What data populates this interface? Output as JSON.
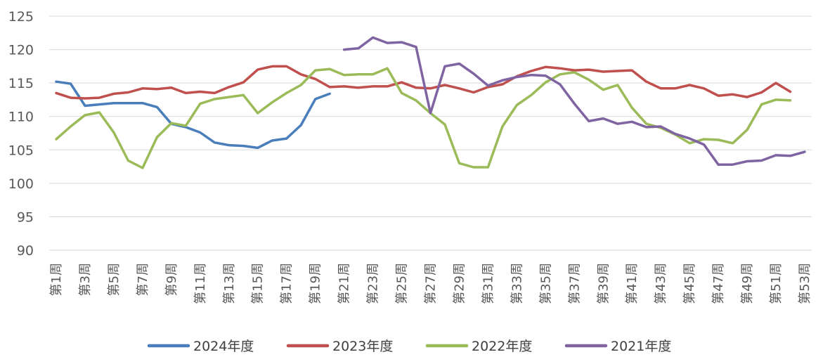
{
  "chart_data": {
    "type": "line",
    "title": "",
    "xlabel": "",
    "ylabel": "",
    "ylim": [
      90,
      125
    ],
    "yticks": [
      90,
      95,
      100,
      105,
      110,
      115,
      120,
      125
    ],
    "grid": true,
    "legend_position": "bottom",
    "categories": [
      "第1周",
      "第2周",
      "第3周",
      "第4周",
      "第5周",
      "第6周",
      "第7周",
      "第8周",
      "第9周",
      "第10周",
      "第11周",
      "第12周",
      "第13周",
      "第14周",
      "第15周",
      "第16周",
      "第17周",
      "第18周",
      "第19周",
      "第20周",
      "第21周",
      "第22周",
      "第23周",
      "第24周",
      "第25周",
      "第26周",
      "第27周",
      "第28周",
      "第29周",
      "第30周",
      "第31周",
      "第32周",
      "第33周",
      "第34周",
      "第35周",
      "第36周",
      "第37周",
      "第38周",
      "第39周",
      "第40周",
      "第41周",
      "第42周",
      "第43周",
      "第44周",
      "第45周",
      "第46周",
      "第47周",
      "第48周",
      "第49周",
      "第50周",
      "第51周",
      "第52周",
      "第53周"
    ],
    "x_tick_labels": [
      "第1周",
      "第3周",
      "第5周",
      "第7周",
      "第9周",
      "第11周",
      "第13周",
      "第15周",
      "第17周",
      "第19周",
      "第21周",
      "第23周",
      "第25周",
      "第27周",
      "第29周",
      "第31周",
      "第33周",
      "第35周",
      "第37周",
      "第39周",
      "第41周",
      "第43周",
      "第45周",
      "第47周",
      "第49周",
      "第51周",
      "第53周"
    ],
    "series": [
      {
        "name": "2024年度",
        "color": "#4a7ebb",
        "values": [
          115.2,
          114.9,
          111.6,
          111.8,
          112.0,
          112.0,
          112.0,
          111.4,
          108.9,
          108.4,
          107.6,
          106.1,
          105.7,
          105.6,
          105.3,
          106.4,
          106.7,
          108.7,
          112.6,
          113.4,
          null,
          null,
          null,
          null,
          null,
          null,
          null,
          null,
          null,
          null,
          null,
          null,
          null,
          null,
          null,
          null,
          null,
          null,
          null,
          null,
          null,
          null,
          null,
          null,
          null,
          null,
          null,
          null,
          null,
          null,
          null,
          null,
          null
        ]
      },
      {
        "name": "2023年度",
        "color": "#c0504d",
        "values": [
          113.5,
          112.8,
          112.7,
          112.8,
          113.4,
          113.6,
          114.2,
          114.1,
          114.3,
          113.5,
          113.7,
          113.5,
          114.4,
          115.1,
          117.0,
          117.5,
          117.5,
          116.3,
          115.6,
          114.4,
          114.5,
          114.3,
          114.5,
          114.5,
          115.1,
          114.3,
          114.2,
          114.7,
          114.2,
          113.6,
          114.4,
          114.8,
          116.0,
          116.8,
          117.4,
          117.2,
          116.9,
          117.0,
          116.7,
          116.8,
          116.9,
          115.2,
          114.2,
          114.2,
          114.7,
          114.2,
          113.1,
          113.3,
          112.9,
          113.6,
          115.0,
          113.7,
          null
        ]
      },
      {
        "name": "2022年度",
        "color": "#9bbb59",
        "values": [
          106.6,
          108.5,
          110.2,
          110.6,
          107.6,
          103.4,
          102.3,
          106.9,
          109.0,
          108.6,
          111.9,
          112.6,
          112.9,
          113.2,
          110.5,
          112.1,
          113.5,
          114.7,
          116.9,
          117.1,
          116.2,
          116.3,
          116.3,
          117.2,
          113.5,
          112.4,
          110.5,
          108.8,
          103.0,
          102.4,
          102.4,
          108.5,
          111.7,
          113.2,
          115.1,
          116.3,
          116.6,
          115.5,
          114.0,
          114.7,
          111.3,
          108.9,
          108.3,
          107.3,
          106.0,
          106.6,
          106.5,
          106.0,
          108.0,
          111.8,
          112.5,
          112.4,
          null
        ]
      },
      {
        "name": "2021年度",
        "color": "#8064a2",
        "values": [
          null,
          null,
          null,
          null,
          null,
          null,
          null,
          null,
          null,
          null,
          null,
          null,
          null,
          null,
          null,
          null,
          null,
          null,
          null,
          null,
          120.0,
          120.2,
          121.8,
          121.0,
          121.1,
          120.4,
          110.5,
          117.5,
          117.9,
          116.4,
          114.6,
          115.4,
          115.9,
          116.2,
          116.1,
          114.8,
          111.9,
          109.3,
          109.7,
          108.9,
          109.2,
          108.4,
          108.5,
          107.4,
          106.7,
          105.8,
          102.8,
          102.8,
          103.3,
          103.4,
          104.2,
          104.1,
          104.7
        ]
      }
    ]
  }
}
